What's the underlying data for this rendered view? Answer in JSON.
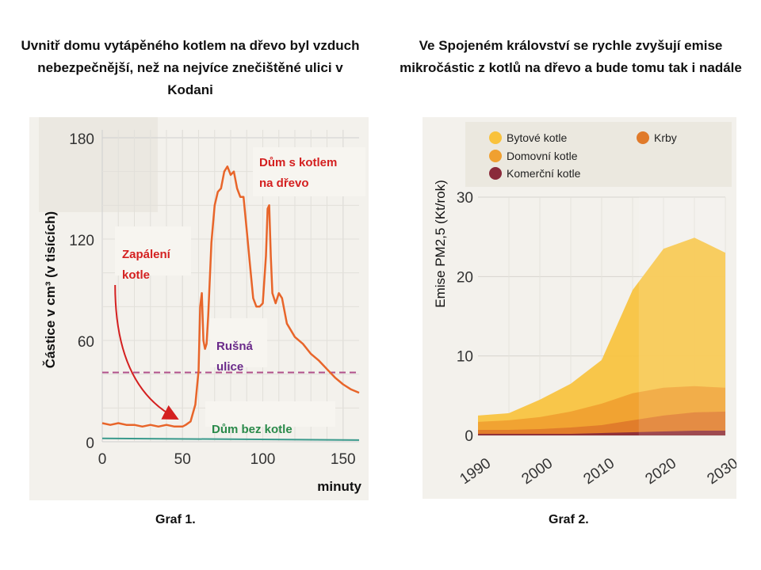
{
  "titles": {
    "left": "Uvnitř domu vytápěného kotlem na dřevo byl vzduch nebezpečnější, než na nejvíce znečištěné ulici v Kodani",
    "right": "Ve Spojeném království se rychle zvyšují emise mikročástic z kotlů na dřevo a bude tomu tak i nadále"
  },
  "captions": {
    "left": "Graf 1.",
    "right": "Graf 2."
  },
  "chart_data": [
    {
      "type": "line",
      "title": "Uvnitř domu vytápěného kotlem na dřevo byl vzduch nebezpečnější, než na nejvíce znečištěné ulici v Kodani",
      "xlabel": "minuty",
      "ylabel": "Částice v cm³ (v tisících)",
      "xlim": [
        0,
        160
      ],
      "ylim": [
        0,
        180
      ],
      "xticks": [
        0,
        50,
        100,
        150
      ],
      "yticks": [
        0,
        60,
        120,
        180
      ],
      "grid": true,
      "colors": {
        "house_wood": "#e8652a",
        "busy_street": "#b0508a",
        "house_no_boiler": "#3a9a8c",
        "annotation_red": "#d42020",
        "annotation_purple": "#6a2a8a",
        "annotation_green": "#2a8a4a"
      },
      "series": [
        {
          "name": "Dům s kotlem na dřevo",
          "x": [
            0,
            5,
            10,
            15,
            20,
            25,
            30,
            35,
            40,
            45,
            50,
            52,
            55,
            58,
            60,
            61,
            62,
            63,
            64,
            65,
            66,
            68,
            70,
            72,
            74,
            76,
            78,
            80,
            82,
            84,
            86,
            88,
            90,
            92,
            94,
            96,
            98,
            100,
            102,
            103,
            104,
            105,
            106,
            108,
            110,
            112,
            115,
            120,
            125,
            130,
            135,
            140,
            145,
            150,
            155,
            160
          ],
          "y": [
            11,
            10,
            11,
            10,
            10,
            9,
            10,
            9,
            10,
            9,
            9,
            10,
            12,
            22,
            42,
            80,
            88,
            60,
            55,
            58,
            75,
            118,
            140,
            148,
            150,
            160,
            163,
            158,
            160,
            150,
            145,
            145,
            125,
            105,
            85,
            80,
            80,
            82,
            110,
            138,
            140,
            110,
            88,
            82,
            88,
            85,
            70,
            62,
            58,
            52,
            48,
            43,
            38,
            34,
            31,
            29
          ]
        },
        {
          "name": "Rušná ulice",
          "x": [
            0,
            160
          ],
          "y": [
            41,
            41
          ]
        },
        {
          "name": "Dům bez kotle",
          "x": [
            0,
            160
          ],
          "y": [
            2,
            1
          ]
        }
      ],
      "annotations": [
        {
          "text": "Dům s kotlem na dřevo",
          "lines": [
            "Dům s kotlem",
            "na dřevo"
          ],
          "color": "annotation_red"
        },
        {
          "text": "Zapálení kotle",
          "lines": [
            "Zapálení",
            "kotle"
          ],
          "color": "annotation_red"
        },
        {
          "text": "Rušná ulice",
          "lines": [
            "Rušná",
            "ulice"
          ],
          "color": "annotation_purple"
        },
        {
          "text": "Dům bez kotle",
          "lines": [
            "Dům bez kotle"
          ],
          "color": "annotation_green"
        }
      ]
    },
    {
      "type": "area",
      "stacked": true,
      "title": "Ve Spojeném království se rychle zvyšují emise mikročástic z kotlů na dřevo a bude tomu tak i nadále",
      "xlabel": "",
      "ylabel": "Emise PM2,5 (Kt/rok)",
      "x": [
        1990,
        1995,
        2000,
        2005,
        2010,
        2015,
        2020,
        2025,
        2030
      ],
      "xticks": [
        1990,
        2000,
        2010,
        2020,
        2030
      ],
      "yticks": [
        0,
        10,
        20,
        30
      ],
      "xlim": [
        1990,
        2030
      ],
      "ylim": [
        0,
        30
      ],
      "grid": true,
      "legend_position": "top",
      "projection_from": 2016,
      "series": [
        {
          "name": "Komerční kotle",
          "color": "#8a2a3a",
          "values": [
            0.2,
            0.2,
            0.2,
            0.2,
            0.3,
            0.4,
            0.5,
            0.6,
            0.6
          ]
        },
        {
          "name": "Krby",
          "color": "#e07a2a",
          "values": [
            0.5,
            0.5,
            0.6,
            0.8,
            1.0,
            1.5,
            2.0,
            2.3,
            2.4
          ]
        },
        {
          "name": "Domovní kotle",
          "color": "#f0a030",
          "values": [
            1.0,
            1.2,
            1.5,
            2.0,
            2.7,
            3.4,
            3.5,
            3.3,
            3.0
          ]
        },
        {
          "name": "Bytové kotle",
          "color": "#f9c23c",
          "values": [
            0.8,
            0.9,
            2.2,
            3.5,
            5.5,
            13.0,
            17.5,
            18.7,
            17.0
          ]
        }
      ]
    }
  ]
}
